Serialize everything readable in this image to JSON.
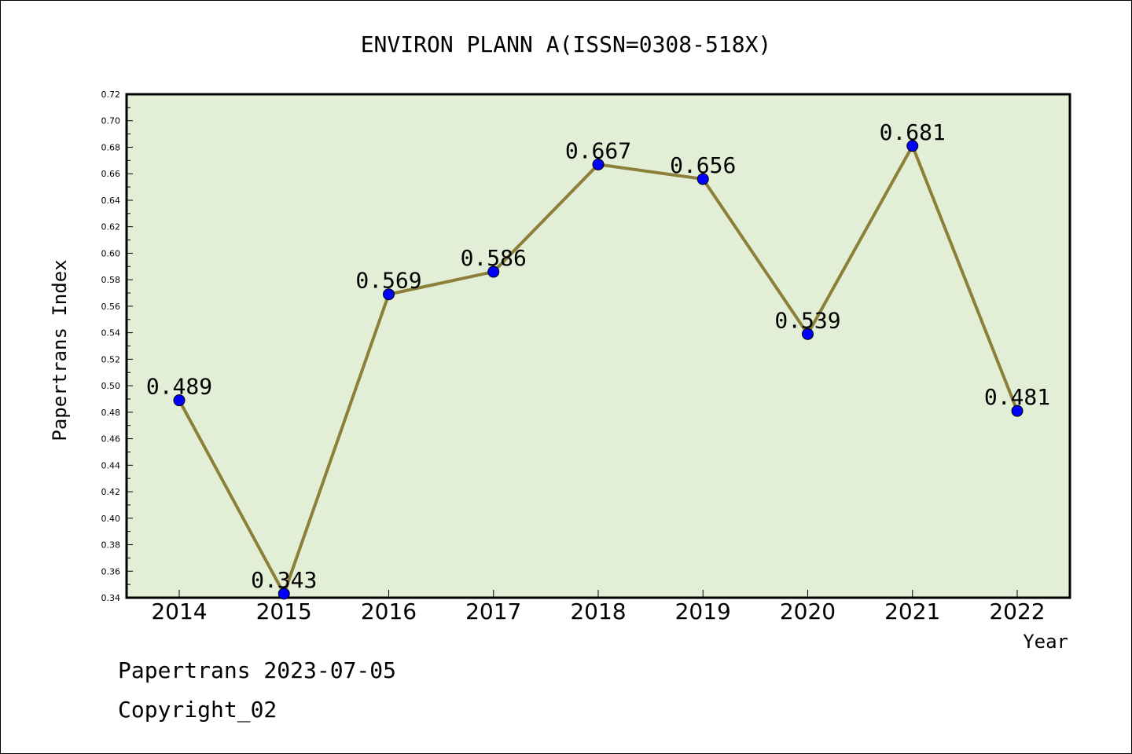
{
  "chart_data": {
    "type": "line",
    "title": "ENVIRON PLANN A(ISSN=0308-518X)",
    "xlabel": "Year",
    "ylabel": "Papertrans Index",
    "categories": [
      "2014",
      "2015",
      "2016",
      "2017",
      "2018",
      "2019",
      "2020",
      "2021",
      "2022"
    ],
    "values": [
      0.489,
      0.343,
      0.569,
      0.586,
      0.667,
      0.656,
      0.539,
      0.681,
      0.481
    ],
    "data_labels": [
      "0.489",
      "0.343",
      "0.569",
      "0.586",
      "0.667",
      "0.656",
      "0.539",
      "0.681",
      "0.481"
    ],
    "ylim": [
      0.34,
      0.72
    ],
    "yticks": [
      "0.34",
      "0.36",
      "0.38",
      "0.40",
      "0.42",
      "0.44",
      "0.46",
      "0.48",
      "0.50",
      "0.52",
      "0.54",
      "0.56",
      "0.58",
      "0.60",
      "0.62",
      "0.64",
      "0.66",
      "0.68",
      "0.70",
      "0.72"
    ],
    "grid": false,
    "legend": "none",
    "colors": {
      "plot_background": "#e2efd6",
      "line": "#8c7f3a",
      "marker": "#0000ff"
    }
  },
  "footer": {
    "line1": "Papertrans 2023-07-05",
    "line2": "Copyright_02"
  }
}
